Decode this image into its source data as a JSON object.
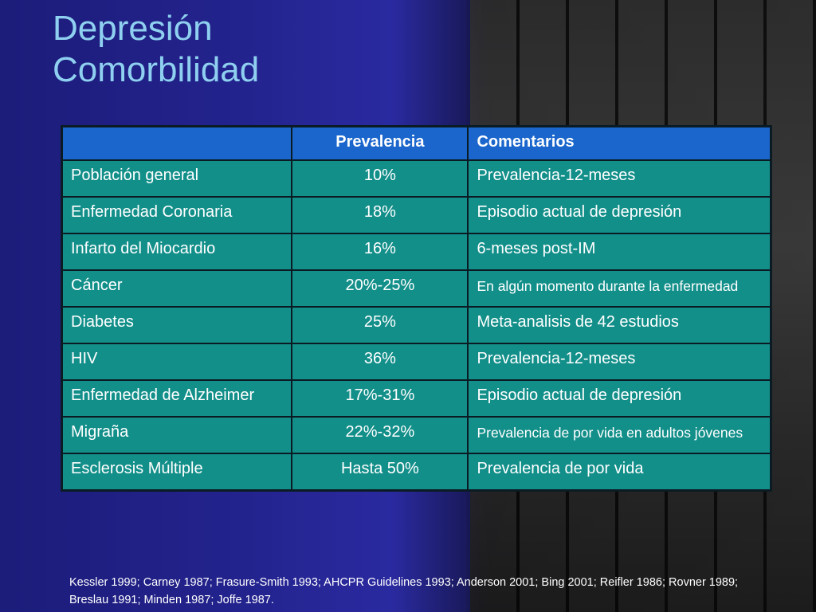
{
  "slide": {
    "title_line1": "Depresión",
    "title_line2": "Comorbilidad"
  },
  "table": {
    "headers": [
      "",
      "Prevalencia",
      "Comentarios"
    ],
    "rows": [
      {
        "condition": "Población general",
        "prevalence": "10%",
        "comment": "Prevalencia-12-meses"
      },
      {
        "condition": "Enfermedad Coronaria",
        "prevalence": "18%",
        "comment": "Episodio actual de depresión"
      },
      {
        "condition": "Infarto del Miocardio",
        "prevalence": "16%",
        "comment": "6-meses post-IM"
      },
      {
        "condition": "Cáncer",
        "prevalence": "20%-25%",
        "comment": "En algún momento durante la enfermedad"
      },
      {
        "condition": "Diabetes",
        "prevalence": "25%",
        "comment": "Meta-analisis de 42 estudios"
      },
      {
        "condition": "HIV",
        "prevalence": "36%",
        "comment": "Prevalencia-12-meses"
      },
      {
        "condition": "Enfermedad de Alzheimer",
        "prevalence": "17%-31%",
        "comment": "Episodio actual de depresión"
      },
      {
        "condition": "Migraña",
        "prevalence": "22%-32%",
        "comment": "Prevalencia de por vida en adultos jóvenes"
      },
      {
        "condition": "Esclerosis Múltiple",
        "prevalence": "Hasta 50%",
        "comment": "Prevalencia de por vida"
      }
    ]
  },
  "references": "Kessler 1999; Carney 1987; Frasure-Smith 1993; AHCPR Guidelines 1993; Anderson 2001; Bing 2001; Reifler 1986; Rovner 1989; Breslau 1991; Minden 1987; Joffe 1987.",
  "colors": {
    "title": "#8fd0f0",
    "header_bg": "#1a66cc",
    "cell_bg": "#138f8a",
    "background_left": "#23238e"
  }
}
